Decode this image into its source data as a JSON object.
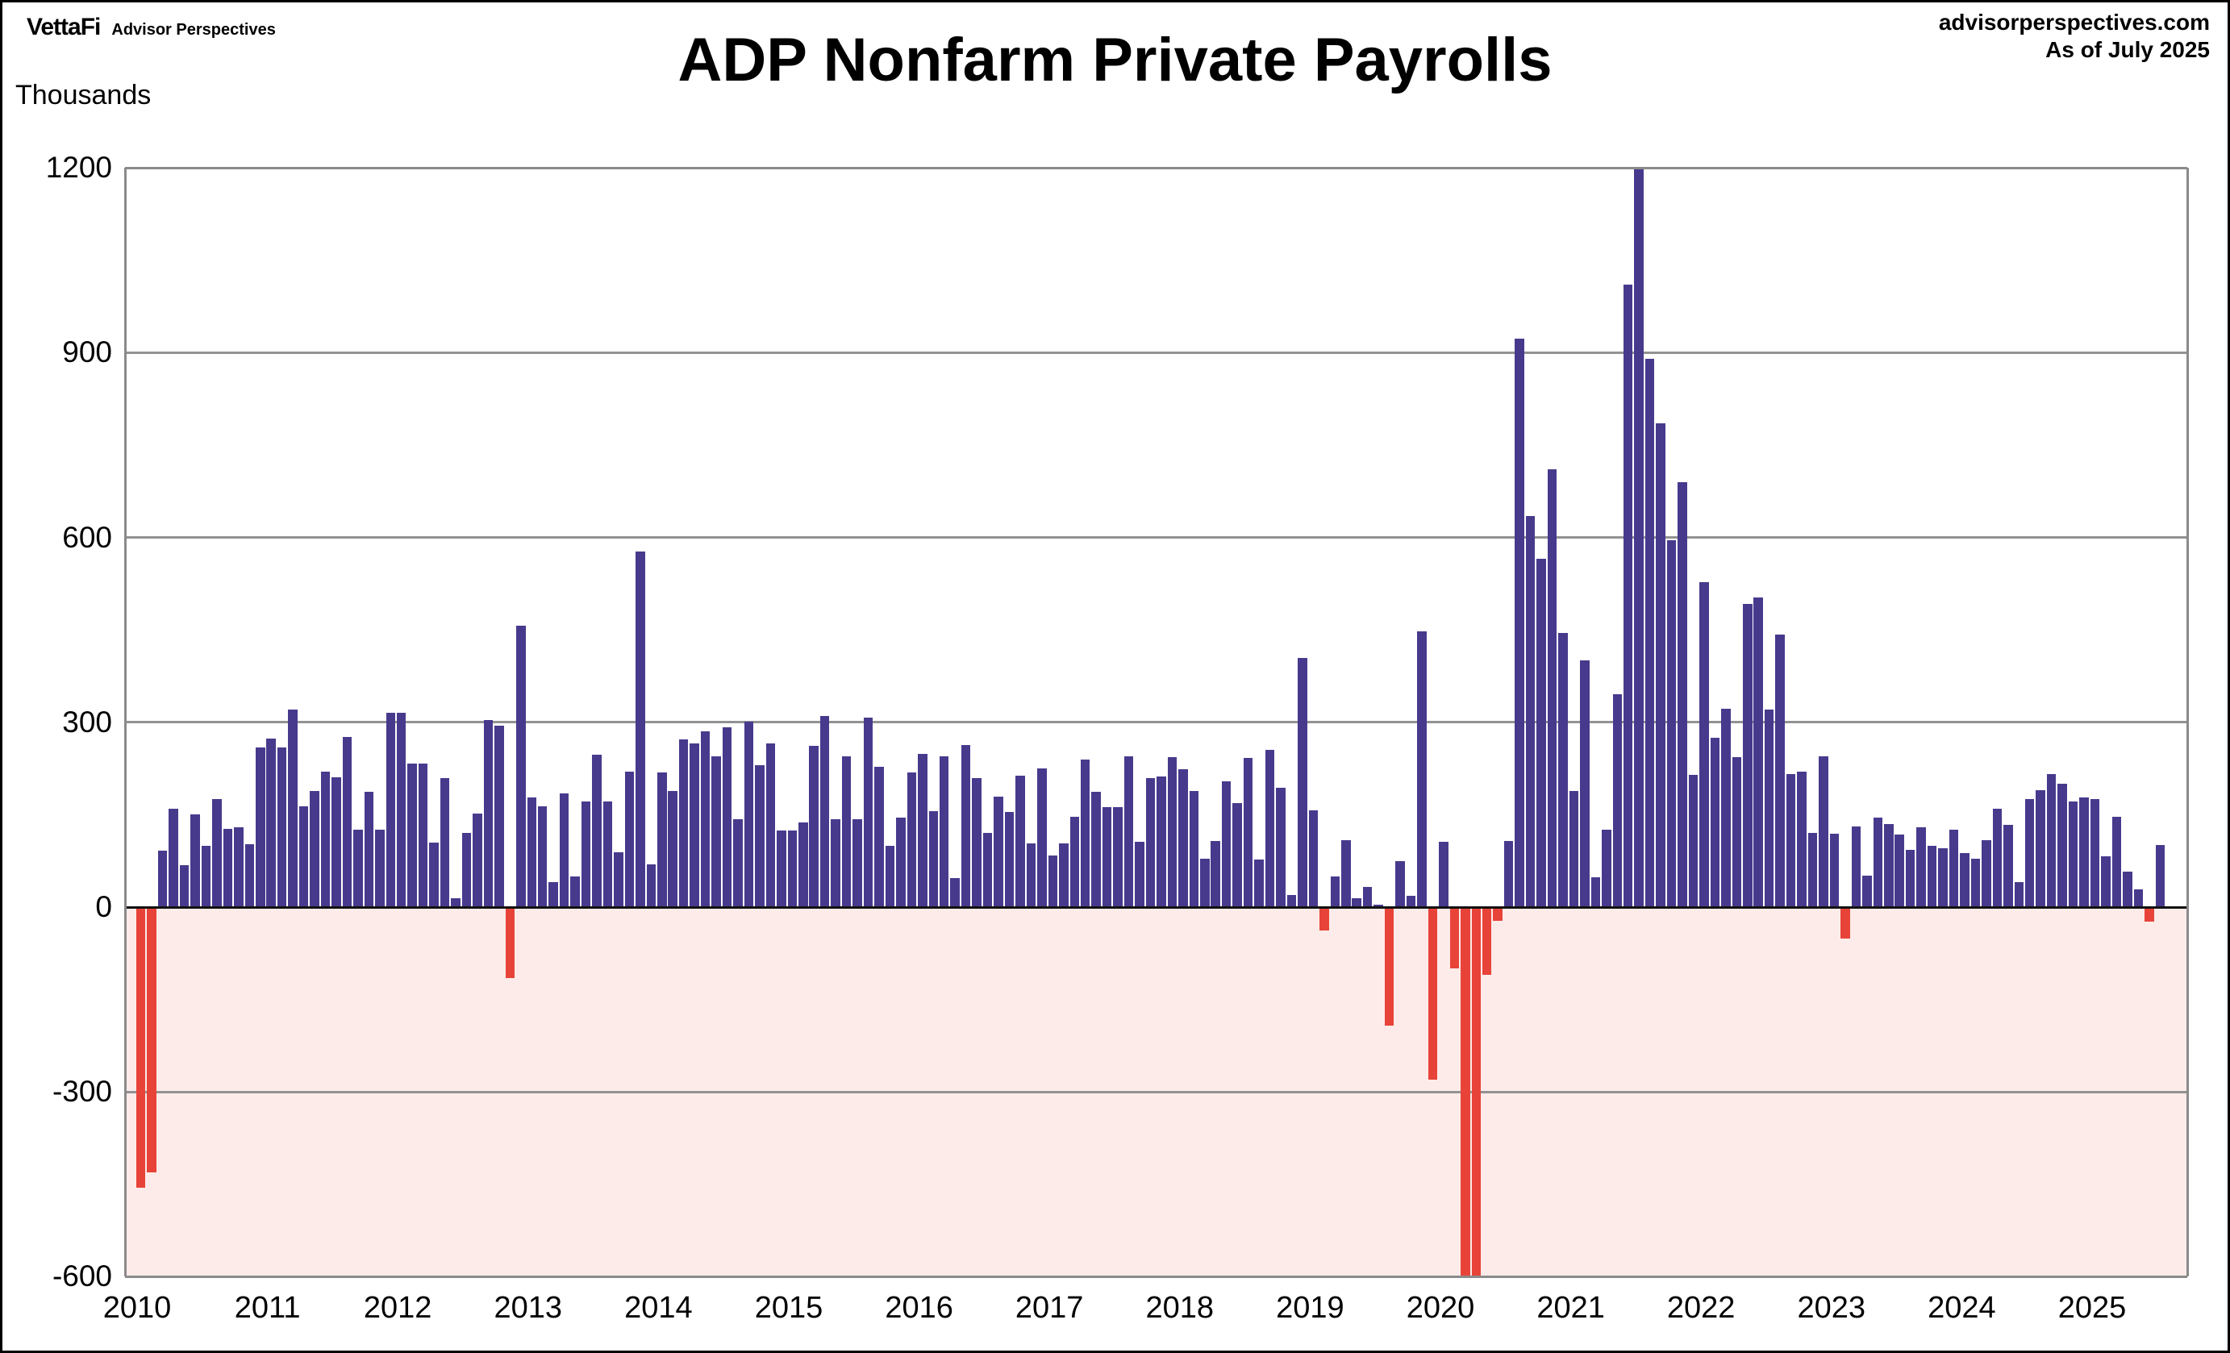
{
  "branding": {
    "logo_primary": "VettaFi",
    "logo_secondary": "Advisor Perspectives",
    "site_line1": "advisorperspectives.com",
    "site_line2": "As of July 2025"
  },
  "chart_data": {
    "type": "bar",
    "title": "ADP Nonfarm Private Payrolls",
    "ylabel": "Thousands",
    "ylim": [
      -600,
      1200
    ],
    "yticks": [
      1200,
      900,
      600,
      300,
      0,
      -300,
      -600
    ],
    "grid": "horizontal gridlines every 300, shaded pink band below zero",
    "legend": "none",
    "x_start": "2010-01",
    "x_end": "2025-07",
    "year_labels": [
      "2010",
      "2011",
      "2012",
      "2013",
      "2014",
      "2015",
      "2016",
      "2017",
      "2018",
      "2019",
      "2020",
      "2021",
      "2022",
      "2023",
      "2024",
      "2025"
    ],
    "bar_colors": {
      "positive": "#473a8d",
      "negative": "#e84338"
    },
    "clip_note": "Mar 2020 and Apr 2020 bars extend below the -600 axis limit (drawn clipped at -600)",
    "series_monthly_change_thousands": [
      {
        "year": 2010,
        "values": [
          -455,
          -430,
          92,
          160,
          68,
          150,
          99,
          175,
          127,
          129,
          102,
          259
        ]
      },
      {
        "year": 2011,
        "values": [
          274,
          259,
          320,
          163,
          188,
          220,
          211,
          276,
          126,
          187,
          125,
          315
        ]
      },
      {
        "year": 2012,
        "values": [
          316,
          233,
          233,
          105,
          210,
          15,
          121,
          152,
          303,
          295,
          -115,
          457
        ]
      },
      {
        "year": 2013,
        "values": [
          178,
          164,
          41,
          185,
          50,
          172,
          247,
          171,
          89,
          220,
          577,
          70
        ]
      },
      {
        "year": 2014,
        "values": [
          218,
          188,
          272,
          266,
          285,
          245,
          292,
          143,
          301,
          230,
          266,
          124
        ]
      },
      {
        "year": 2015,
        "values": [
          124,
          137,
          262,
          310,
          143,
          245,
          143,
          307,
          228,
          100,
          145,
          218
        ]
      },
      {
        "year": 2016,
        "values": [
          249,
          156,
          245,
          47,
          263,
          209,
          121,
          179,
          155,
          213,
          104,
          225
        ]
      },
      {
        "year": 2017,
        "values": [
          84,
          104,
          146,
          239,
          187,
          162,
          162,
          245,
          106,
          209,
          212,
          243
        ]
      },
      {
        "year": 2018,
        "values": [
          224,
          188,
          79,
          107,
          204,
          169,
          242,
          77,
          255,
          194,
          19,
          405
        ]
      },
      {
        "year": 2019,
        "values": [
          157,
          -38,
          50,
          108,
          14,
          33,
          4,
          -193,
          74,
          18,
          447,
          -280
        ]
      },
      {
        "year": 2020,
        "values": [
          106,
          -100,
          -620,
          -620,
          -110,
          -22,
          107,
          922,
          635,
          565,
          710,
          445
        ]
      },
      {
        "year": 2021,
        "values": [
          188,
          400,
          49,
          125,
          346,
          1010,
          1200,
          890,
          785,
          595,
          690,
          215
        ]
      },
      {
        "year": 2022,
        "values": [
          528,
          275,
          322,
          244,
          492,
          503,
          321,
          442,
          216,
          220,
          120,
          245
        ]
      },
      {
        "year": 2023,
        "values": [
          119,
          -51,
          131,
          51,
          145,
          135,
          118,
          93,
          129,
          99,
          96,
          125
        ]
      },
      {
        "year": 2024,
        "values": [
          88,
          79,
          109,
          160,
          133,
          41,
          176,
          190,
          216,
          200,
          172,
          178
        ]
      },
      {
        "year": 2025,
        "values": [
          176,
          82,
          146,
          58,
          29,
          -23,
          101
        ]
      }
    ]
  }
}
